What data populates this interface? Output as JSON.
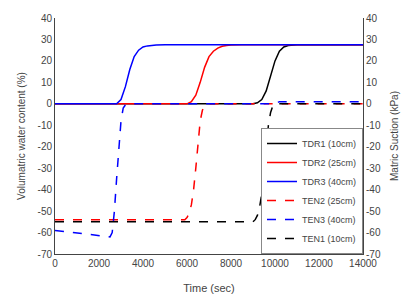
{
  "chart_data": {
    "type": "line",
    "xlabel": "Time (sec)",
    "ylabel": "Volumatric water content (%)",
    "y2label": "Matric Suction (kPa)",
    "xlim": [
      0,
      14000
    ],
    "ylim": [
      -70,
      40
    ],
    "xticks": [
      0,
      2000,
      4000,
      6000,
      8000,
      10000,
      12000,
      14000
    ],
    "yticks": [
      -70,
      -60,
      -50,
      -40,
      -30,
      -20,
      -10,
      0,
      10,
      20,
      30,
      40
    ],
    "y2lim": [
      -70,
      40
    ],
    "y2ticks": [
      -70,
      -60,
      -50,
      -40,
      -30,
      -20,
      -10,
      0,
      10,
      20,
      30,
      40
    ],
    "grid": false,
    "legend": "lower right",
    "series": [
      {
        "name": "TDR1 (10cm)",
        "color": "#000000",
        "line_style": "solid",
        "x": [
          0,
          9000,
          9200,
          9400,
          9600,
          9800,
          10000,
          10200,
          10400,
          10600,
          10800,
          11000,
          11200,
          12000,
          14000
        ],
        "values": [
          0,
          0,
          0.5,
          2,
          6,
          13,
          20,
          24.5,
          26.5,
          27.2,
          27.5,
          27.5,
          27.5,
          27.5,
          27.5
        ]
      },
      {
        "name": "TDR2 (25cm)",
        "color": "#ff0000",
        "line_style": "solid",
        "x": [
          0,
          6000,
          6200,
          6400,
          6600,
          6800,
          7000,
          7200,
          7400,
          7600,
          7800,
          8000,
          8500,
          12000,
          14000
        ],
        "values": [
          0,
          0,
          1,
          4,
          10,
          17,
          22,
          24.5,
          26,
          26.8,
          27.2,
          27.4,
          27.5,
          27.5,
          27.5
        ]
      },
      {
        "name": "TDR3 (40cm)",
        "color": "#0000ff",
        "line_style": "solid",
        "x": [
          0,
          2800,
          3000,
          3200,
          3400,
          3600,
          3800,
          4000,
          4200,
          4400,
          4600,
          5000,
          6000,
          12000,
          14000
        ],
        "values": [
          0,
          0,
          2,
          8,
          16,
          22,
          25,
          26.5,
          27,
          27.3,
          27.4,
          27.5,
          27.5,
          27.5,
          27.5
        ]
      },
      {
        "name": "TEN2 (25cm)",
        "color": "#ff0000",
        "line_style": "dashed",
        "x": [
          0,
          5900,
          6000,
          6100,
          6200,
          6300,
          6400,
          6500,
          6600,
          6700,
          6800,
          7000,
          8000,
          14000
        ],
        "values": [
          -54,
          -54,
          -53,
          -51,
          -47,
          -40,
          -30,
          -18,
          -8,
          -3,
          -1,
          0,
          0,
          0
        ]
      },
      {
        "name": "TEN3 (40cm)",
        "color": "#0000ff",
        "line_style": "dashed",
        "x": [
          0,
          2500,
          2600,
          2700,
          2800,
          2900,
          3000,
          3100,
          3200,
          3400,
          4000,
          10000,
          10200,
          14000
        ],
        "values": [
          -59,
          -62,
          -60,
          -50,
          -35,
          -20,
          -8,
          -2,
          -0.5,
          0,
          0,
          0,
          1,
          1
        ]
      },
      {
        "name": "TEN1 (10cm)",
        "color": "#000000",
        "line_style": "dashed",
        "x": [
          0,
          9000,
          9100,
          9200,
          9300,
          9400,
          9500,
          9600,
          9700,
          9800,
          9900,
          10000,
          10200,
          10600,
          14000
        ],
        "values": [
          -55,
          -55,
          -54,
          -52,
          -48,
          -42,
          -32,
          -20,
          -10,
          -4,
          -1,
          0,
          0,
          0,
          0
        ]
      }
    ]
  }
}
